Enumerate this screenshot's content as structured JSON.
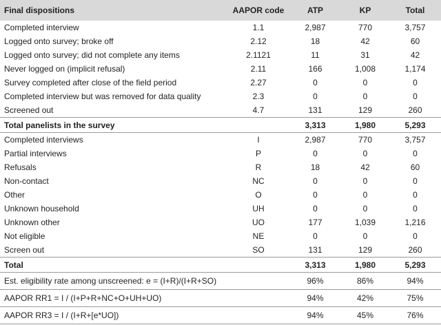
{
  "table": {
    "header": [
      "Final dispositions",
      "AAPOR code",
      "ATP",
      "KP",
      "Total"
    ],
    "rows": [
      [
        "Completed interview",
        "1.1",
        "2,987",
        "770",
        "3,757"
      ],
      [
        "Logged onto survey; broke off",
        "2.12",
        "18",
        "42",
        "60"
      ],
      [
        "Logged onto survey; did not complete any items",
        "2.1121",
        "11",
        "31",
        "42"
      ],
      [
        "Never logged on (implicit refusal)",
        "2.11",
        "166",
        "1,008",
        "1,174"
      ],
      [
        "Survey completed after close of the field period",
        "2.27",
        "0",
        "0",
        "0"
      ],
      [
        "Completed interview but was removed for data quality",
        "2.3",
        "0",
        "0",
        "0"
      ],
      [
        "Screened out",
        "4.7",
        "131",
        "129",
        "260"
      ],
      [
        "Total panelists in the survey",
        null,
        "3,313",
        "1,980",
        "5,293"
      ],
      [
        "Completed interviews",
        "I",
        "2,987",
        "770",
        "3,757"
      ],
      [
        "Partial interviews",
        "P",
        "0",
        "0",
        "0"
      ],
      [
        "Refusals",
        "R",
        "18",
        "42",
        "60"
      ],
      [
        "Non-contact",
        "NC",
        "0",
        "0",
        "0"
      ],
      [
        "Other",
        "O",
        "0",
        "0",
        "0"
      ],
      [
        "Unknown household",
        "UH",
        "0",
        "0",
        "0"
      ],
      [
        "Unknown other",
        "UO",
        "177",
        "1,039",
        "1,216"
      ],
      [
        "Not eligible",
        "NE",
        "0",
        "0",
        "0"
      ],
      [
        "Screen out",
        "SO",
        "131",
        "129",
        "260"
      ],
      [
        "Total",
        null,
        "3,313",
        "1,980",
        "5,293"
      ],
      [
        "Est. eligibility rate among unscreened: e = (I+R)/(I+R+SO)",
        null,
        "96%",
        "86%",
        "94%"
      ],
      [
        "AAPOR RR1 = I / (I+P+R+NC+O+UH+UO)",
        null,
        "94%",
        "42%",
        "75%"
      ],
      [
        "AAPOR RR3 = I / (I+R+[e*UO])",
        null,
        "94%",
        "45%",
        "76%"
      ]
    ]
  }
}
